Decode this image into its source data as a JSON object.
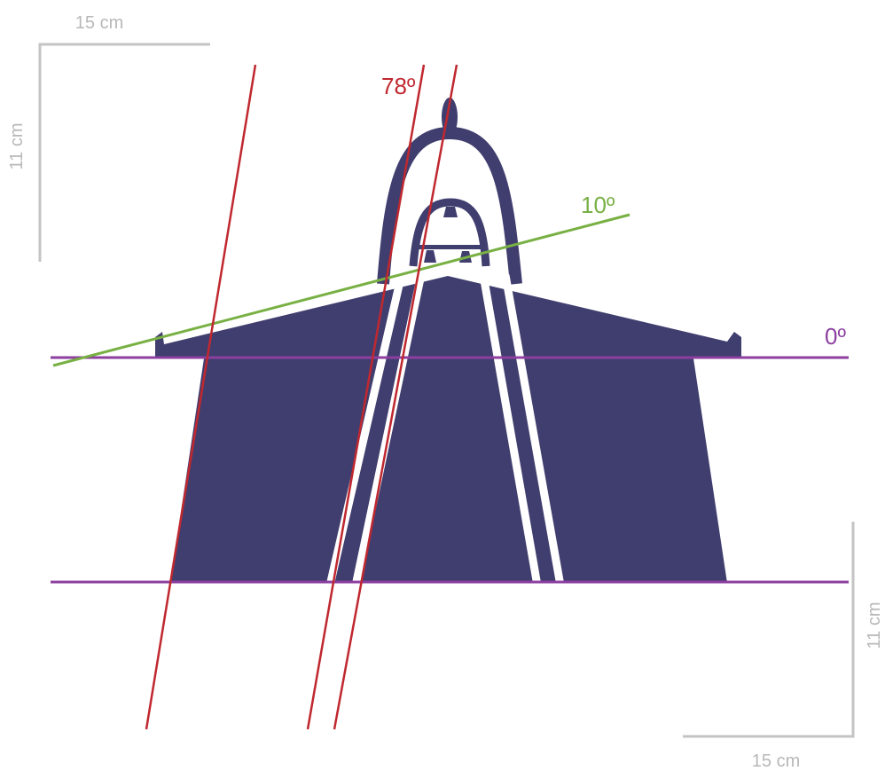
{
  "scale_top": {
    "width_label": "15 cm",
    "height_label": "11 cm"
  },
  "angles": [
    {
      "label": "78º"
    },
    {
      "label": "10º"
    },
    {
      "label": "0º"
    }
  ],
  "scale_bottom": {
    "height_label": "11 cm",
    "width_label": "15 cm"
  }
}
